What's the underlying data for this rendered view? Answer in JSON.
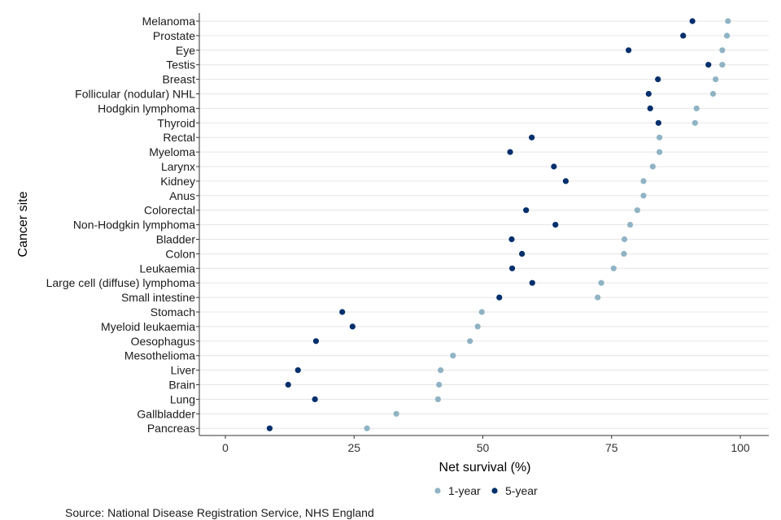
{
  "chart_data": {
    "type": "scatter",
    "title": "",
    "xlabel": "Net survival (%)",
    "ylabel": "Cancer site",
    "xlim": [
      -5,
      105
    ],
    "x_ticks": [
      "0",
      "25",
      "50",
      "75",
      "100"
    ],
    "grid": "horizontal",
    "legend_position": "bottom",
    "categories": [
      "Melanoma",
      "Prostate",
      "Eye",
      "Testis",
      "Breast",
      "Follicular (nodular) NHL",
      "Hodgkin lymphoma",
      "Thyroid",
      "Rectal",
      "Myeloma",
      "Larynx",
      "Kidney",
      "Anus",
      "Colorectal",
      "Non-Hodgkin lymphoma",
      "Bladder",
      "Colon",
      "Leukaemia",
      "Large cell (diffuse) lymphoma",
      "Small intestine",
      "Stomach",
      "Myeloid leukaemia",
      "Oesophagus",
      "Mesothelioma",
      "Liver",
      "Brain",
      "Lung",
      "Gallbladder",
      "Pancreas"
    ],
    "series": [
      {
        "name": "1-year",
        "color": "#8fb3c4",
        "values": [
          97.6,
          97.4,
          96.5,
          96.5,
          95.2,
          94.7,
          91.5,
          91.2,
          84.3,
          84.3,
          83.0,
          81.2,
          81.2,
          80.0,
          78.6,
          77.5,
          77.4,
          75.4,
          73.0,
          72.3,
          49.8,
          49.0,
          47.5,
          44.2,
          41.8,
          41.5,
          41.3,
          33.2,
          27.5
        ]
      },
      {
        "name": "5-year",
        "color": "#002f6c",
        "values": [
          90.7,
          88.9,
          null,
          93.8,
          84.0,
          82.2,
          82.5,
          84.1,
          59.5,
          55.3,
          63.8,
          66.1,
          null,
          58.4,
          64.1,
          55.6,
          57.6,
          55.7,
          59.6,
          53.2,
          22.7,
          24.7,
          17.6,
          null,
          14.1,
          12.2,
          17.4,
          null,
          8.6
        ]
      }
    ],
    "extra_points": [
      {
        "category": "Eye",
        "series": "5-year",
        "value": 78.3
      }
    ]
  },
  "source_text": "Source: National Disease Registration Service, NHS England"
}
